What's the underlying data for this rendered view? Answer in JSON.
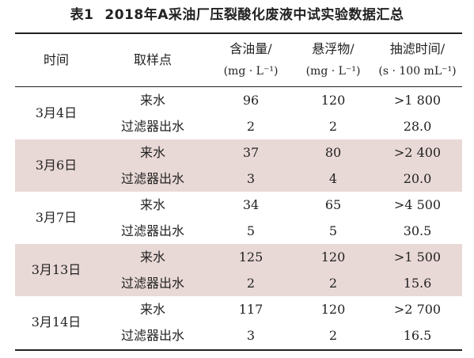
{
  "caption": {
    "number": "表1",
    "title": "2018年A采油厂压裂酸化废液中试实验数据汇总"
  },
  "headers": {
    "date": "时间",
    "sample_point": "取样点",
    "oil_content": {
      "label": "含油量/",
      "unit": "(mg · L⁻¹)"
    },
    "suspended": {
      "label": "悬浮物/",
      "unit": "(mg · L⁻¹)"
    },
    "filter_time": {
      "label": "抽滤时间/",
      "unit": "(s · 100 mL⁻¹)"
    }
  },
  "groups": [
    {
      "date": "3月4日",
      "rows": [
        {
          "point": "来水",
          "oil": "96",
          "ss": "120",
          "time": ">1 800"
        },
        {
          "point": "过滤器出水",
          "oil": "2",
          "ss": "2",
          "time": "28.0"
        }
      ]
    },
    {
      "date": "3月6日",
      "rows": [
        {
          "point": "来水",
          "oil": "37",
          "ss": "80",
          "time": ">2 400"
        },
        {
          "point": "过滤器出水",
          "oil": "3",
          "ss": "4",
          "time": "20.0"
        }
      ]
    },
    {
      "date": "3月7日",
      "rows": [
        {
          "point": "来水",
          "oil": "34",
          "ss": "65",
          "time": ">4 500"
        },
        {
          "point": "过滤器出水",
          "oil": "5",
          "ss": "5",
          "time": "30.5"
        }
      ]
    },
    {
      "date": "3月13日",
      "rows": [
        {
          "point": "来水",
          "oil": "125",
          "ss": "120",
          "time": ">1 500"
        },
        {
          "point": "过滤器出水",
          "oil": "2",
          "ss": "2",
          "time": "15.6"
        }
      ]
    },
    {
      "date": "3月14日",
      "rows": [
        {
          "point": "来水",
          "oil": "117",
          "ss": "120",
          "time": ">2 700"
        },
        {
          "point": "过滤器出水",
          "oil": "3",
          "ss": "2",
          "time": "16.5"
        }
      ]
    }
  ],
  "colors": {
    "shaded_row": "#e9d9d6",
    "text": "#222222",
    "rule": "#222222"
  }
}
